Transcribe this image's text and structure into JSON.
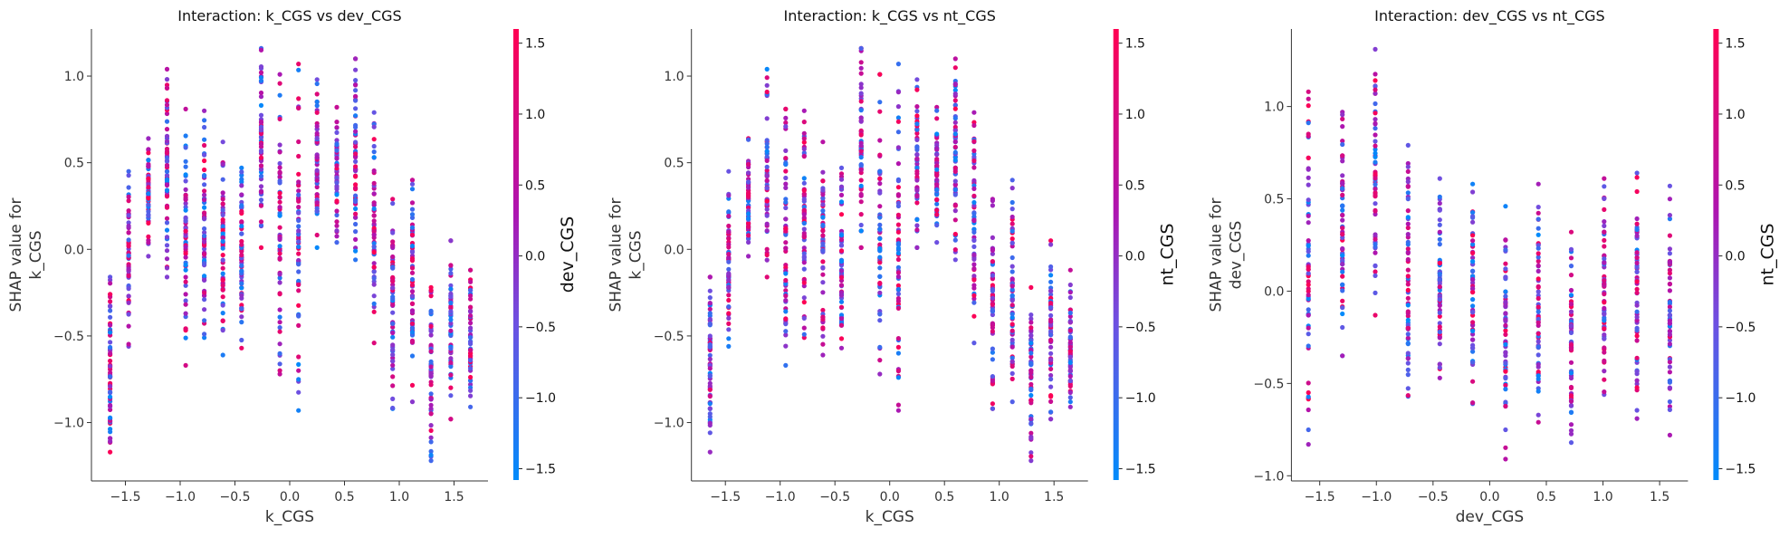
{
  "chart_data": [
    {
      "type": "scatter",
      "title": "Interaction: k_CGS vs dev_CGS",
      "xlabel": "k_CGS",
      "ylabel_lines": [
        "SHAP value for",
        "k_CGS"
      ],
      "colorbar_label": "dev_CGS",
      "xlim": [
        -1.81,
        1.81
      ],
      "ylim": [
        -1.337,
        1.272
      ],
      "x_ticks": [
        -1.5,
        -1.0,
        -0.5,
        0.0,
        0.5,
        1.0,
        1.5
      ],
      "x_tick_labels": [
        "−1.5",
        "−1.0",
        "−0.5",
        "0.0",
        "0.5",
        "1.0",
        "1.5"
      ],
      "y_ticks": [
        -1.0,
        -0.5,
        0.0,
        0.5,
        1.0
      ],
      "y_tick_labels": [
        "−1.0",
        "−0.5",
        "0.0",
        "0.5",
        "1.0"
      ],
      "colorbar_range": [
        -1.58,
        1.6
      ],
      "colorbar_ticks": [
        -1.5,
        -1.0,
        -0.5,
        0.0,
        0.5,
        1.0,
        1.5
      ],
      "colorbar_tick_labels": [
        "−1.5",
        "−1.0",
        "−0.5",
        "0.0",
        "0.5",
        "1.0",
        "1.5"
      ],
      "colormap": [
        "#008bfb",
        "#ff0052"
      ],
      "grid": false,
      "columns": [
        {
          "x": -1.64,
          "y_range": [
            -1.17,
            -0.16
          ]
        },
        {
          "x": -1.47,
          "y_range": [
            -0.56,
            0.45
          ]
        },
        {
          "x": -1.29,
          "y_range": [
            -0.04,
            0.64
          ]
        },
        {
          "x": -1.12,
          "y_range": [
            -0.16,
            1.04
          ]
        },
        {
          "x": -0.95,
          "y_range": [
            -0.67,
            0.81
          ]
        },
        {
          "x": -0.78,
          "y_range": [
            -0.51,
            0.8
          ]
        },
        {
          "x": -0.61,
          "y_range": [
            -0.61,
            0.62
          ]
        },
        {
          "x": -0.44,
          "y_range": [
            -0.57,
            0.47
          ]
        },
        {
          "x": -0.26,
          "y_range": [
            0.01,
            1.16
          ]
        },
        {
          "x": -0.09,
          "y_range": [
            -0.72,
            1.01
          ]
        },
        {
          "x": 0.08,
          "y_range": [
            -0.93,
            1.07
          ]
        },
        {
          "x": 0.25,
          "y_range": [
            0.01,
            0.98
          ]
        },
        {
          "x": 0.43,
          "y_range": [
            0.04,
            0.82
          ]
        },
        {
          "x": 0.6,
          "y_range": [
            -0.06,
            1.1
          ]
        },
        {
          "x": 0.77,
          "y_range": [
            -0.54,
            0.79
          ]
        },
        {
          "x": 0.94,
          "y_range": [
            -0.92,
            0.29
          ]
        },
        {
          "x": 1.12,
          "y_range": [
            -0.88,
            0.4
          ]
        },
        {
          "x": 1.29,
          "y_range": [
            -1.22,
            -0.22
          ]
        },
        {
          "x": 1.47,
          "y_range": [
            -0.98,
            0.05
          ]
        },
        {
          "x": 1.65,
          "y_range": [
            -0.91,
            -0.12
          ]
        }
      ]
    },
    {
      "type": "scatter",
      "title": "Interaction: k_CGS vs nt_CGS",
      "xlabel": "k_CGS",
      "ylabel_lines": [
        "SHAP value for",
        "k_CGS"
      ],
      "colorbar_label": "nt_CGS",
      "xlim": [
        -1.81,
        1.81
      ],
      "ylim": [
        -1.337,
        1.272
      ],
      "x_ticks": [
        -1.5,
        -1.0,
        -0.5,
        0.0,
        0.5,
        1.0,
        1.5
      ],
      "x_tick_labels": [
        "−1.5",
        "−1.0",
        "−0.5",
        "0.0",
        "0.5",
        "1.0",
        "1.5"
      ],
      "y_ticks": [
        -1.0,
        -0.5,
        0.0,
        0.5,
        1.0
      ],
      "y_tick_labels": [
        "−1.0",
        "−0.5",
        "0.0",
        "0.5",
        "1.0"
      ],
      "colorbar_range": [
        -1.58,
        1.6
      ],
      "colorbar_ticks": [
        -1.5,
        -1.0,
        -0.5,
        0.0,
        0.5,
        1.0,
        1.5
      ],
      "colorbar_tick_labels": [
        "−1.5",
        "−1.0",
        "−0.5",
        "0.0",
        "0.5",
        "1.0",
        "1.5"
      ],
      "colormap": [
        "#008bfb",
        "#ff0052"
      ],
      "grid": false,
      "columns": [
        {
          "x": -1.64,
          "y_range": [
            -1.17,
            -0.16
          ]
        },
        {
          "x": -1.47,
          "y_range": [
            -0.56,
            0.45
          ]
        },
        {
          "x": -1.29,
          "y_range": [
            -0.04,
            0.64
          ]
        },
        {
          "x": -1.12,
          "y_range": [
            -0.16,
            1.04
          ]
        },
        {
          "x": -0.95,
          "y_range": [
            -0.67,
            0.81
          ]
        },
        {
          "x": -0.78,
          "y_range": [
            -0.51,
            0.8
          ]
        },
        {
          "x": -0.61,
          "y_range": [
            -0.61,
            0.62
          ]
        },
        {
          "x": -0.44,
          "y_range": [
            -0.57,
            0.47
          ]
        },
        {
          "x": -0.26,
          "y_range": [
            0.01,
            1.16
          ]
        },
        {
          "x": -0.09,
          "y_range": [
            -0.72,
            1.01
          ]
        },
        {
          "x": 0.08,
          "y_range": [
            -0.93,
            1.07
          ]
        },
        {
          "x": 0.25,
          "y_range": [
            0.01,
            0.98
          ]
        },
        {
          "x": 0.43,
          "y_range": [
            0.04,
            0.82
          ]
        },
        {
          "x": 0.6,
          "y_range": [
            -0.06,
            1.1
          ]
        },
        {
          "x": 0.77,
          "y_range": [
            -0.54,
            0.79
          ]
        },
        {
          "x": 0.94,
          "y_range": [
            -0.92,
            0.29
          ]
        },
        {
          "x": 1.12,
          "y_range": [
            -0.88,
            0.4
          ]
        },
        {
          "x": 1.29,
          "y_range": [
            -1.22,
            -0.22
          ]
        },
        {
          "x": 1.47,
          "y_range": [
            -0.98,
            0.05
          ]
        },
        {
          "x": 1.65,
          "y_range": [
            -0.91,
            -0.12
          ]
        }
      ]
    },
    {
      "type": "scatter",
      "title": "Interaction: dev_CGS vs nt_CGS",
      "xlabel": "dev_CGS",
      "ylabel_lines": [
        "SHAP value for",
        "dev_CGS"
      ],
      "colorbar_label": "nt_CGS",
      "xlim": [
        -1.75,
        1.75
      ],
      "ylim": [
        -1.028,
        1.42
      ],
      "x_ticks": [
        -1.5,
        -1.0,
        -0.5,
        0.0,
        0.5,
        1.0,
        1.5
      ],
      "x_tick_labels": [
        "−1.5",
        "−1.0",
        "−0.5",
        "0.0",
        "0.5",
        "1.0",
        "1.5"
      ],
      "y_ticks": [
        -1.0,
        -0.5,
        0.0,
        0.5,
        1.0
      ],
      "y_tick_labels": [
        "−1.0",
        "−0.5",
        "0.0",
        "0.5",
        "1.0"
      ],
      "colorbar_range": [
        -1.58,
        1.6
      ],
      "colorbar_ticks": [
        -1.5,
        -1.0,
        -0.5,
        0.0,
        0.5,
        1.0,
        1.5
      ],
      "colorbar_tick_labels": [
        "−1.5",
        "−1.0",
        "−0.5",
        "0.0",
        "0.5",
        "1.0",
        "1.5"
      ],
      "colormap": [
        "#008bfb",
        "#ff0052"
      ],
      "grid": false,
      "columns": [
        {
          "x": -1.6,
          "y_range": [
            -0.83,
            1.08
          ]
        },
        {
          "x": -1.3,
          "y_range": [
            -0.35,
            0.97
          ]
        },
        {
          "x": -1.01,
          "y_range": [
            -0.13,
            1.31
          ]
        },
        {
          "x": -0.72,
          "y_range": [
            -0.57,
            0.79
          ]
        },
        {
          "x": -0.44,
          "y_range": [
            -0.47,
            0.61
          ]
        },
        {
          "x": -0.15,
          "y_range": [
            -0.61,
            0.58
          ]
        },
        {
          "x": 0.14,
          "y_range": [
            -0.91,
            0.46
          ]
        },
        {
          "x": 0.43,
          "y_range": [
            -0.71,
            0.58
          ]
        },
        {
          "x": 0.72,
          "y_range": [
            -0.82,
            0.32
          ]
        },
        {
          "x": 1.01,
          "y_range": [
            -0.56,
            0.61
          ]
        },
        {
          "x": 1.3,
          "y_range": [
            -0.69,
            0.64
          ]
        },
        {
          "x": 1.59,
          "y_range": [
            -0.78,
            0.57
          ]
        }
      ]
    }
  ]
}
